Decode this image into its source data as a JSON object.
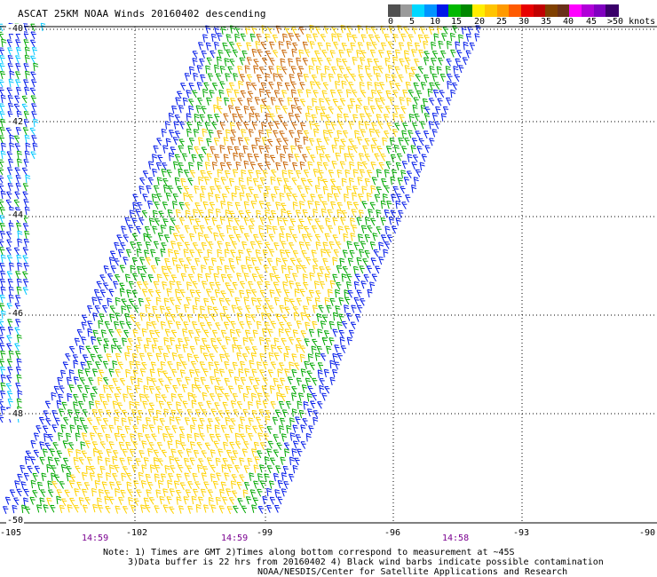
{
  "title": "ASCAT 25KM NOAA Winds 20160402 descending",
  "colorbar": {
    "ticks": [
      "0",
      "5",
      "10",
      "15",
      "20",
      "25",
      "30",
      "35",
      "40",
      "45",
      ">50 knots"
    ],
    "colors": [
      "#505050",
      "#9a9a9a",
      "#00d8ff",
      "#0094ff",
      "#0018e8",
      "#00b800",
      "#008800",
      "#ffee00",
      "#ffc400",
      "#ff9a00",
      "#ff5a00",
      "#e80000",
      "#c00000",
      "#804000",
      "#6a3018",
      "#ff00ff",
      "#b000d8",
      "#8000c0",
      "#3a006a"
    ]
  },
  "map": {
    "lon_labels": [
      "-105",
      "-102",
      "-99",
      "-96",
      "-93",
      "-90"
    ],
    "lat_labels": [
      "-40",
      "-42",
      "-44",
      "-46",
      "-48",
      "-50"
    ],
    "lon_range": [
      -105,
      -90
    ],
    "lat_range": [
      -50,
      -40
    ],
    "times": [
      "14:59",
      "14:59",
      "14:58"
    ]
  },
  "notes": {
    "line1": "Note: 1) Times are GMT 2)Times along bottom correspond to measurement at ~45S",
    "line2": "3)Data buffer is 22 hrs from 20160402 4) Black wind barbs indicate possible contamination",
    "line3": "NOAA/NESDIS/Center for Satellite Applications and Research"
  }
}
